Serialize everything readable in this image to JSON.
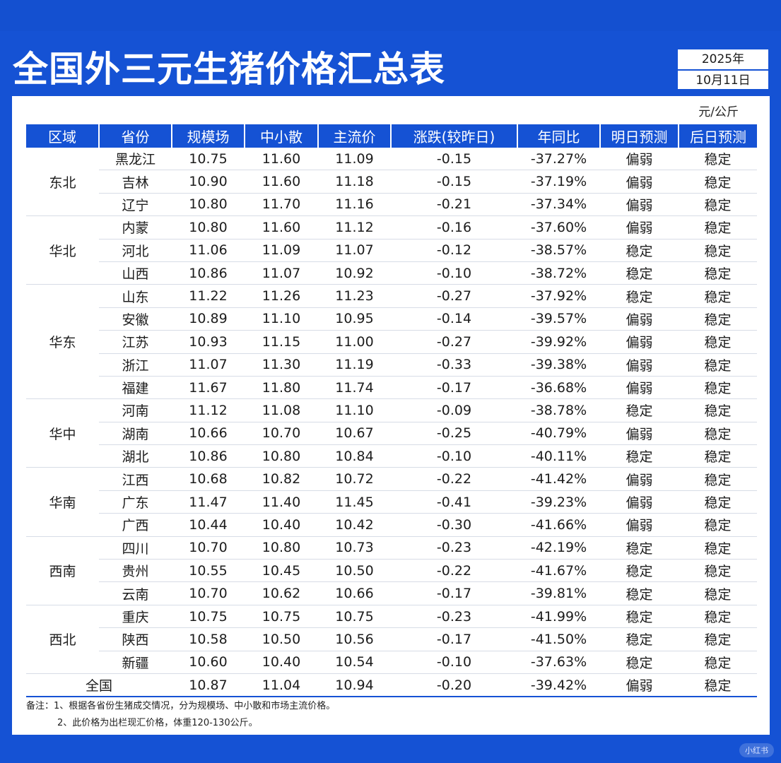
{
  "title": "全国外三元生猪价格汇总表",
  "date": {
    "year": "2025年",
    "day": "10月11日"
  },
  "unit": "元/公斤",
  "headers": [
    "区域",
    "省份",
    "规模场",
    "中小散",
    "主流价",
    "涨跌(较昨日)",
    "年同比",
    "明日预测",
    "后日预测"
  ],
  "rows": [
    {
      "region": "东北",
      "province": "黑龙江",
      "large": "10.75",
      "small": "11.60",
      "main": "11.09",
      "change": "-0.15",
      "yoy": "-37.27%",
      "tomorrow": "偏弱",
      "after": "稳定"
    },
    {
      "region": "",
      "province": "吉林",
      "large": "10.90",
      "small": "11.60",
      "main": "11.18",
      "change": "-0.15",
      "yoy": "-37.19%",
      "tomorrow": "偏弱",
      "after": "稳定"
    },
    {
      "region": "",
      "province": "辽宁",
      "large": "10.80",
      "small": "11.70",
      "main": "11.16",
      "change": "-0.21",
      "yoy": "-37.34%",
      "tomorrow": "偏弱",
      "after": "稳定"
    },
    {
      "region": "华北",
      "province": "内蒙",
      "large": "10.80",
      "small": "11.60",
      "main": "11.12",
      "change": "-0.16",
      "yoy": "-37.60%",
      "tomorrow": "偏弱",
      "after": "稳定"
    },
    {
      "region": "",
      "province": "河北",
      "large": "11.06",
      "small": "11.09",
      "main": "11.07",
      "change": "-0.12",
      "yoy": "-38.57%",
      "tomorrow": "稳定",
      "after": "稳定"
    },
    {
      "region": "",
      "province": "山西",
      "large": "10.86",
      "small": "11.07",
      "main": "10.92",
      "change": "-0.10",
      "yoy": "-38.72%",
      "tomorrow": "稳定",
      "after": "稳定"
    },
    {
      "region": "华东",
      "province": "山东",
      "large": "11.22",
      "small": "11.26",
      "main": "11.23",
      "change": "-0.27",
      "yoy": "-37.92%",
      "tomorrow": "稳定",
      "after": "稳定"
    },
    {
      "region": "",
      "province": "安徽",
      "large": "10.89",
      "small": "11.10",
      "main": "10.95",
      "change": "-0.14",
      "yoy": "-39.57%",
      "tomorrow": "偏弱",
      "after": "稳定"
    },
    {
      "region": "",
      "province": "江苏",
      "large": "10.93",
      "small": "11.15",
      "main": "11.00",
      "change": "-0.27",
      "yoy": "-39.92%",
      "tomorrow": "偏弱",
      "after": "稳定"
    },
    {
      "region": "",
      "province": "浙江",
      "large": "11.07",
      "small": "11.30",
      "main": "11.19",
      "change": "-0.33",
      "yoy": "-39.38%",
      "tomorrow": "偏弱",
      "after": "稳定"
    },
    {
      "region": "",
      "province": "福建",
      "large": "11.67",
      "small": "11.80",
      "main": "11.74",
      "change": "-0.17",
      "yoy": "-36.68%",
      "tomorrow": "偏弱",
      "after": "稳定"
    },
    {
      "region": "华中",
      "province": "河南",
      "large": "11.12",
      "small": "11.08",
      "main": "11.10",
      "change": "-0.09",
      "yoy": "-38.78%",
      "tomorrow": "稳定",
      "after": "稳定"
    },
    {
      "region": "",
      "province": "湖南",
      "large": "10.66",
      "small": "10.70",
      "main": "10.67",
      "change": "-0.25",
      "yoy": "-40.79%",
      "tomorrow": "偏弱",
      "after": "稳定"
    },
    {
      "region": "",
      "province": "湖北",
      "large": "10.86",
      "small": "10.80",
      "main": "10.84",
      "change": "-0.10",
      "yoy": "-40.11%",
      "tomorrow": "稳定",
      "after": "稳定"
    },
    {
      "region": "华南",
      "province": "江西",
      "large": "10.68",
      "small": "10.82",
      "main": "10.72",
      "change": "-0.22",
      "yoy": "-41.42%",
      "tomorrow": "偏弱",
      "after": "稳定"
    },
    {
      "region": "",
      "province": "广东",
      "large": "11.47",
      "small": "11.40",
      "main": "11.45",
      "change": "-0.41",
      "yoy": "-39.23%",
      "tomorrow": "偏弱",
      "after": "稳定"
    },
    {
      "region": "",
      "province": "广西",
      "large": "10.44",
      "small": "10.40",
      "main": "10.42",
      "change": "-0.30",
      "yoy": "-41.66%",
      "tomorrow": "偏弱",
      "after": "稳定"
    },
    {
      "region": "西南",
      "province": "四川",
      "large": "10.70",
      "small": "10.80",
      "main": "10.73",
      "change": "-0.23",
      "yoy": "-42.19%",
      "tomorrow": "稳定",
      "after": "稳定"
    },
    {
      "region": "",
      "province": "贵州",
      "large": "10.55",
      "small": "10.45",
      "main": "10.50",
      "change": "-0.22",
      "yoy": "-41.67%",
      "tomorrow": "稳定",
      "after": "稳定"
    },
    {
      "region": "",
      "province": "云南",
      "large": "10.70",
      "small": "10.62",
      "main": "10.66",
      "change": "-0.17",
      "yoy": "-39.81%",
      "tomorrow": "稳定",
      "after": "稳定"
    },
    {
      "region": "西北",
      "province": "重庆",
      "large": "10.75",
      "small": "10.75",
      "main": "10.75",
      "change": "-0.23",
      "yoy": "-41.99%",
      "tomorrow": "稳定",
      "after": "稳定"
    },
    {
      "region": "",
      "province": "陕西",
      "large": "10.58",
      "small": "10.50",
      "main": "10.56",
      "change": "-0.17",
      "yoy": "-41.50%",
      "tomorrow": "稳定",
      "after": "稳定"
    },
    {
      "region": "",
      "province": "新疆",
      "large": "10.60",
      "small": "10.40",
      "main": "10.54",
      "change": "-0.10",
      "yoy": "-37.63%",
      "tomorrow": "稳定",
      "after": "稳定"
    }
  ],
  "total": {
    "label": "全国",
    "large": "10.87",
    "small": "11.04",
    "main": "10.94",
    "change": "-0.20",
    "yoy": "-39.42%",
    "tomorrow": "偏弱",
    "after": "稳定"
  },
  "notes": [
    "备注：1、根据各省份生猪成交情况，分为规模场、中小散和市场主流价格。",
    "2、此价格为出栏现汇价格，体重120-130公斤。"
  ],
  "watermark": "小红书",
  "colors": {
    "brand": "#1552d4",
    "green": "#14b85a"
  }
}
